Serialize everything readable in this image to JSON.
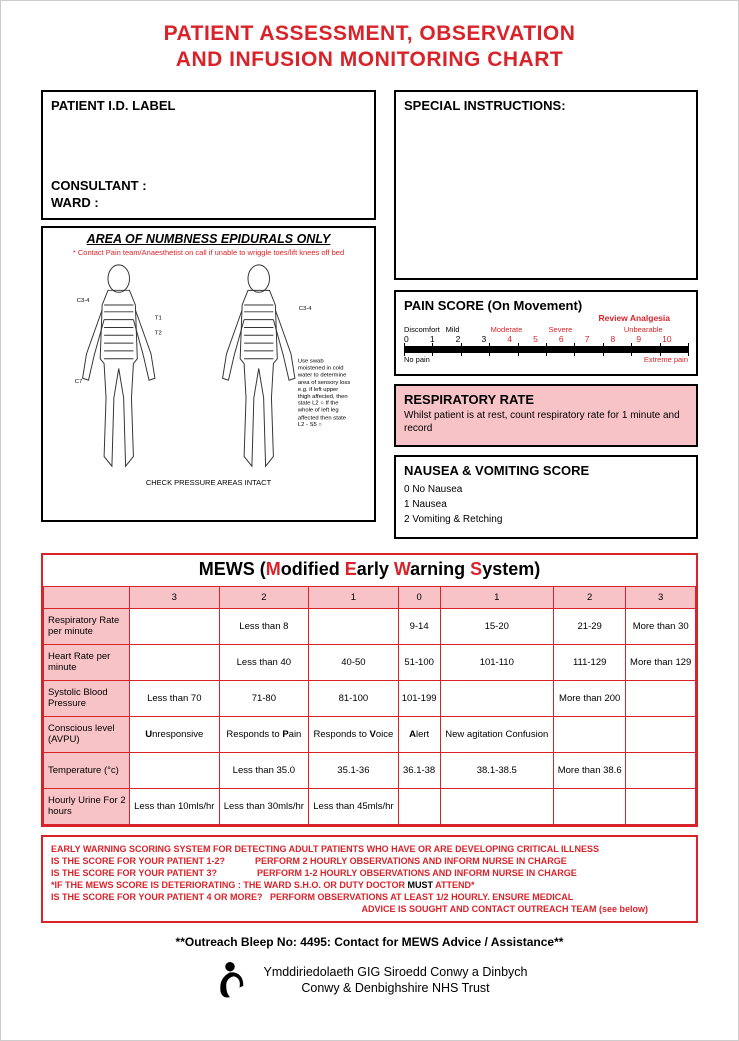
{
  "title_line1": "PATIENT ASSESSMENT, OBSERVATION",
  "title_line2": "AND INFUSION MONITORING CHART",
  "patient": {
    "id_label": "PATIENT I.D. LABEL",
    "consultant": "CONSULTANT :",
    "ward": "WARD :"
  },
  "special_instructions": "SPECIAL INSTRUCTIONS:",
  "numbness": {
    "header": "AREA OF NUMBNESS EPIDURALS ONLY",
    "note": "* Contact Pain team/Anaesthetist on call if unable to wriggle toes/lift knees off bed",
    "instructions": "Use swab moistened in cold water to determine area of sensory loss e.g. if left upper thigh affected, then state L2 ○ If the whole of left leg affected then state L2 - S5 ○",
    "footer": "CHECK PRESSURE AREAS INTACT"
  },
  "pain": {
    "header": "PAIN SCORE (On Movement)",
    "review": "Review Analgesia",
    "labels_top": [
      "Discomfort",
      "Mild",
      "",
      "Moderate",
      "",
      "Severe",
      "",
      "",
      "Unbearable",
      ""
    ],
    "numbers": [
      "0",
      "1",
      "2",
      "3",
      "4",
      "5",
      "6",
      "7",
      "8",
      "9",
      "10"
    ],
    "no_pain": "No pain",
    "extreme": "Extreme pain",
    "colors": {
      "black": "#000",
      "red": "#d9232a"
    }
  },
  "respiratory": {
    "header": "RESPIRATORY RATE",
    "text": "Whilst patient is at rest, count respiratory rate for 1 minute and record",
    "background": "#f8c3c7"
  },
  "nausea": {
    "header": "NAUSEA & VOMITING SCORE",
    "items": [
      "0 No Nausea",
      "1 Nausea",
      "2 Vomiting & Retching"
    ]
  },
  "mews": {
    "title_prefix": "MEWS (",
    "title_words": [
      {
        "initial": "M",
        "rest": "odified "
      },
      {
        "initial": "E",
        "rest": "arly "
      },
      {
        "initial": "W",
        "rest": "arning "
      },
      {
        "initial": "S",
        "rest": "ystem)"
      }
    ],
    "header_row": [
      "",
      "3",
      "2",
      "1",
      "0",
      "1",
      "2",
      "3"
    ],
    "rows": [
      {
        "label": "Respiratory Rate per minute",
        "cells": [
          "",
          "Less than 8",
          "",
          "9-14",
          "15-20",
          "21-29",
          "More than 30"
        ]
      },
      {
        "label": "Heart Rate per minute",
        "cells": [
          "",
          "Less than 40",
          "40-50",
          "51-100",
          "101-110",
          "111-129",
          "More than 129"
        ]
      },
      {
        "label": "Systolic Blood Pressure",
        "cells": [
          "Less than 70",
          "71-80",
          "81-100",
          "101-199",
          "",
          "More than 200",
          ""
        ]
      },
      {
        "label": "Conscious level (AVPU)",
        "cells": [
          "<b>U</b>nresponsive",
          "Responds to <b>P</b>ain",
          "Responds to <b>V</b>oice",
          "<b>A</b>lert",
          "New agitation Confusion",
          "",
          ""
        ]
      },
      {
        "label": "Temperature (°c)",
        "cells": [
          "",
          "Less than 35.0",
          "35.1-36",
          "36.1-38",
          "38.1-38.5",
          "More than 38.6",
          ""
        ]
      },
      {
        "label": "Hourly Urine For 2 hours",
        "cells": [
          "Less than 10mls/hr",
          "Less than 30mls/hr",
          "Less than 45mls/hr",
          "",
          "",
          "",
          ""
        ]
      }
    ],
    "header_bg": "#f8c3c7",
    "border": "#d9232a"
  },
  "advice": {
    "line1": "EARLY WARNING SCORING SYSTEM FOR DETECTING ADULT PATIENTS WHO HAVE OR ARE DEVELOPING CRITICAL ILLNESS",
    "line2a": "IS THE SCORE FOR YOUR PATIENT 1-2?",
    "line2b": "PERFORM 2 HOURLY OBSERVATIONS AND INFORM NURSE IN CHARGE",
    "line3a": "IS THE SCORE FOR YOUR PATIENT 3?",
    "line3b": "PERFORM 1-2 HOURLY OBSERVATIONS AND INFORM NURSE IN CHARGE",
    "line4": "*IF THE MEWS SCORE IS DETERIORATING : THE WARD S.H.O. OR DUTY DOCTOR ",
    "line4_must": "MUST",
    "line4_end": " ATTEND*",
    "line5a": "IS THE SCORE FOR YOUR PATIENT 4 OR MORE?",
    "line5b": "PERFORM OBSERVATIONS AT LEAST 1/2 HOURLY. ENSURE MEDICAL",
    "line6": "ADVICE IS SOUGHT AND CONTACT OUTREACH TEAM (see below)"
  },
  "outreach": "**Outreach Bleep No: 4495: Contact for MEWS Advice / Assistance**",
  "footer": {
    "line1": "Ymddiriedolaeth GIG Siroedd Conwy a Dinbych",
    "line2": "Conwy & Denbighshire NHS Trust"
  }
}
